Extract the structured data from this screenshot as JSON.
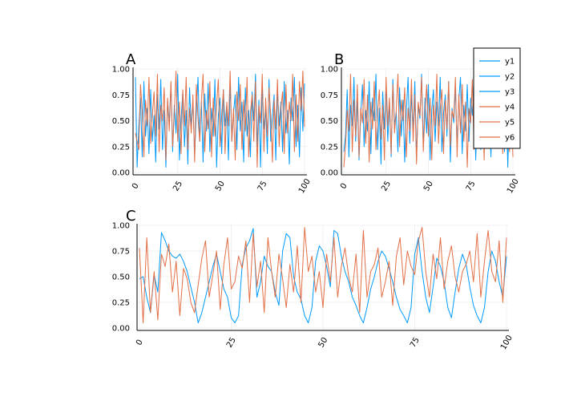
{
  "colors": {
    "blue": "#009AFA",
    "orange": "#E26F46",
    "grid": "#E6E6E6",
    "axis": "#000000"
  },
  "legend": {
    "placement": "top-right",
    "entries": [
      {
        "label": "y1",
        "color": "#009AFA"
      },
      {
        "label": "y2",
        "color": "#009AFA"
      },
      {
        "label": "y3",
        "color": "#009AFA"
      },
      {
        "label": "y4",
        "color": "#E26F46"
      },
      {
        "label": "y5",
        "color": "#E26F46"
      },
      {
        "label": "y6",
        "color": "#E26F46"
      }
    ]
  },
  "chart_data": [
    {
      "type": "line",
      "title": "A",
      "xlim": [
        0,
        100
      ],
      "ylim": [
        0,
        1
      ],
      "xticks": [
        "0",
        "25",
        "50",
        "75",
        "100"
      ],
      "yticks": [
        "0.00",
        "0.25",
        "0.50",
        "0.75",
        "1.00"
      ],
      "grid": true,
      "series": [
        {
          "name": "y1",
          "color": "#009AFA",
          "values": [
            0.92,
            0.05,
            0.45,
            0.72,
            0.15,
            0.88,
            0.35,
            0.62,
            0.18,
            0.8,
            0.3,
            0.55,
            0.1,
            0.75,
            0.42,
            0.9,
            0.22,
            0.6,
            0.05,
            0.7,
            0.48,
            0.85,
            0.2,
            0.65,
            0.38,
            0.95,
            0.12,
            0.52,
            0.78,
            0.25,
            0.6,
            0.08,
            0.82,
            0.44,
            0.7,
            0.15,
            0.58,
            0.92,
            0.3,
            0.68,
            0.1,
            0.76,
            0.4,
            0.86,
            0.2,
            0.62,
            0.35,
            0.9,
            0.05,
            0.55,
            0.72,
            0.18,
            0.8,
            0.45,
            0.65,
            0.12,
            0.88,
            0.3,
            0.58,
            0.75,
            0.22,
            0.92,
            0.4,
            0.68,
            0.1,
            0.82,
            0.35,
            0.6,
            0.15,
            0.78,
            0.5,
            0.95,
            0.25,
            0.7,
            0.05,
            0.85,
            0.42,
            0.62,
            0.18,
            0.9,
            0.3,
            0.55,
            0.75,
            0.12,
            0.8,
            0.45,
            0.68,
            0.2,
            0.88,
            0.38,
            0.6,
            0.08,
            0.72,
            0.5,
            0.92,
            0.25,
            0.65,
            0.15,
            0.82,
            0.4,
            0.86
          ]
        },
        {
          "name": "y4",
          "color": "#E26F46",
          "values": [
            0.38,
            0.3,
            0.22,
            0.85,
            0.6,
            0.15,
            0.7,
            0.45,
            0.92,
            0.28,
            0.55,
            0.78,
            0.35,
            0.95,
            0.2,
            0.65,
            0.5,
            0.82,
            0.12,
            0.72,
            0.4,
            0.88,
            0.25,
            0.58,
            0.98,
            0.3,
            0.68,
            0.18,
            0.8,
            0.45,
            0.92,
            0.22,
            0.62,
            0.38,
            0.75,
            0.1,
            0.85,
            0.52,
            0.3,
            0.7,
            0.95,
            0.2,
            0.6,
            0.42,
            0.88,
            0.15,
            0.72,
            0.35,
            0.65,
            0.9,
            0.25,
            0.55,
            0.8,
            0.18,
            0.68,
            0.45,
            0.98,
            0.3,
            0.62,
            0.12,
            0.78,
            0.5,
            0.85,
            0.22,
            0.7,
            0.4,
            0.92,
            0.15,
            0.58,
            0.75,
            0.3,
            0.88,
            0.05,
            0.65,
            0.48,
            0.95,
            0.2,
            0.72,
            0.35,
            0.82,
            0.55,
            0.1,
            0.7,
            0.42,
            0.9,
            0.25,
            0.62,
            0.78,
            0.18,
            0.85,
            0.38,
            0.68,
            0.5,
            0.95,
            0.2,
            0.75,
            0.3,
            0.88,
            0.6,
            0.98,
            0.44
          ]
        }
      ]
    },
    {
      "type": "line",
      "title": "B",
      "xlim": [
        0,
        100
      ],
      "ylim": [
        0,
        1
      ],
      "xticks": [
        "0",
        "25",
        "50",
        "75",
        "100"
      ],
      "yticks": [
        "0.00",
        "0.25",
        "0.50",
        "0.75",
        "1.00"
      ],
      "grid": true,
      "series": [
        {
          "name": "y2",
          "color": "#009AFA",
          "values": [
            0.2,
            0.35,
            0.8,
            0.15,
            0.65,
            0.45,
            0.92,
            0.3,
            0.7,
            0.12,
            0.55,
            0.85,
            0.25,
            0.6,
            0.4,
            0.88,
            0.18,
            0.72,
            0.5,
            0.95,
            0.22,
            0.62,
            0.08,
            0.78,
            0.42,
            0.85,
            0.3,
            0.68,
            0.15,
            0.9,
            0.45,
            0.58,
            0.2,
            0.82,
            0.35,
            0.7,
            0.1,
            0.6,
            0.92,
            0.28,
            0.75,
            0.4,
            0.88,
            0.15,
            0.65,
            0.52,
            0.95,
            0.25,
            0.72,
            0.38,
            0.85,
            0.12,
            0.6,
            0.8,
            0.3,
            0.68,
            0.45,
            0.92,
            0.2,
            0.58,
            0.75,
            0.35,
            0.88,
            0.1,
            0.62,
            0.48,
            0.82,
            0.25,
            0.7,
            0.92,
            0.18,
            0.65,
            0.4,
            0.85,
            0.3,
            0.72,
            0.55,
            0.95,
            0.12,
            0.6,
            0.78,
            0.22,
            0.68,
            0.45,
            0.9,
            0.35,
            0.62,
            0.15,
            0.8,
            0.5,
            0.92,
            0.28,
            0.7,
            0.42,
            0.86,
            0.2,
            0.65,
            0.05,
            0.75,
            0.55,
            0.82
          ]
        },
        {
          "name": "y5",
          "color": "#E26F46",
          "values": [
            0.05,
            0.25,
            0.6,
            0.4,
            0.95,
            0.2,
            0.7,
            0.35,
            0.85,
            0.15,
            0.62,
            0.48,
            0.9,
            0.28,
            0.75,
            0.1,
            0.68,
            0.42,
            0.88,
            0.22,
            0.58,
            0.8,
            0.32,
            0.65,
            0.12,
            0.92,
            0.45,
            0.72,
            0.18,
            0.85,
            0.38,
            0.6,
            0.95,
            0.25,
            0.7,
            0.5,
            0.82,
            0.15,
            0.62,
            0.4,
            0.9,
            0.3,
            0.75,
            0.08,
            0.68,
            0.55,
            0.92,
            0.2,
            0.58,
            0.85,
            0.35,
            0.72,
            0.12,
            0.65,
            0.45,
            0.95,
            0.28,
            0.62,
            0.8,
            0.18,
            0.7,
            0.42,
            0.88,
            0.25,
            0.6,
            0.52,
            0.92,
            0.15,
            0.75,
            0.38,
            0.85,
            0.3,
            0.68,
            0.05,
            0.62,
            0.48,
            0.9,
            0.22,
            0.72,
            0.58,
            0.82,
            0.35,
            0.65,
            0.12,
            0.88,
            0.42,
            0.7,
            0.25,
            0.95,
            0.55,
            0.78,
            0.3,
            0.62,
            0.85,
            0.18,
            0.72,
            0.45,
            0.9,
            0.2,
            0.68,
            0.15
          ]
        }
      ]
    },
    {
      "type": "line",
      "title": "C",
      "xlim": [
        0,
        100
      ],
      "ylim": [
        0,
        1
      ],
      "xticks": [
        "0",
        "25",
        "50",
        "75",
        "100"
      ],
      "yticks": [
        "0.00",
        "0.25",
        "0.50",
        "0.75",
        "1.00"
      ],
      "grid": true,
      "series": [
        {
          "name": "y3",
          "color": "#009AFA",
          "values": [
            0.48,
            0.5,
            0.3,
            0.15,
            0.52,
            0.35,
            0.93,
            0.85,
            0.75,
            0.7,
            0.68,
            0.72,
            0.65,
            0.55,
            0.4,
            0.25,
            0.05,
            0.15,
            0.3,
            0.45,
            0.6,
            0.72,
            0.55,
            0.38,
            0.3,
            0.1,
            0.05,
            0.12,
            0.62,
            0.78,
            0.85,
            0.97,
            0.3,
            0.45,
            0.7,
            0.6,
            0.55,
            0.35,
            0.22,
            0.75,
            0.92,
            0.88,
            0.5,
            0.35,
            0.28,
            0.12,
            0.05,
            0.2,
            0.65,
            0.8,
            0.75,
            0.6,
            0.4,
            0.95,
            0.92,
            0.7,
            0.55,
            0.45,
            0.3,
            0.22,
            0.12,
            0.05,
            0.2,
            0.38,
            0.5,
            0.65,
            0.75,
            0.7,
            0.58,
            0.45,
            0.3,
            0.18,
            0.12,
            0.05,
            0.2,
            0.72,
            0.88,
            0.55,
            0.3,
            0.15,
            0.4,
            0.68,
            0.6,
            0.45,
            0.2,
            0.1,
            0.35,
            0.58,
            0.72,
            0.62,
            0.4,
            0.22,
            0.12,
            0.05,
            0.2,
            0.55,
            0.75,
            0.65,
            0.45,
            0.3,
            0.7
          ]
        },
        {
          "name": "y6",
          "color": "#E26F46",
          "values": [
            0.78,
            0.05,
            0.88,
            0.15,
            0.55,
            0.08,
            0.72,
            0.6,
            0.82,
            0.35,
            0.65,
            0.12,
            0.58,
            0.48,
            0.25,
            0.15,
            0.42,
            0.68,
            0.85,
            0.3,
            0.52,
            0.75,
            0.18,
            0.62,
            0.88,
            0.38,
            0.45,
            0.7,
            0.58,
            0.85,
            0.25,
            0.92,
            0.4,
            0.65,
            0.15,
            0.88,
            0.55,
            0.3,
            0.72,
            0.48,
            0.2,
            0.62,
            0.35,
            0.8,
            0.25,
            0.98,
            0.55,
            0.7,
            0.35,
            0.55,
            0.2,
            0.72,
            0.45,
            0.88,
            0.3,
            0.6,
            0.78,
            0.5,
            0.35,
            0.72,
            0.15,
            0.95,
            0.3,
            0.55,
            0.62,
            0.78,
            0.3,
            0.45,
            0.65,
            0.22,
            0.7,
            0.88,
            0.42,
            0.75,
            0.6,
            0.52,
            0.85,
            0.98,
            0.55,
            0.3,
            0.72,
            0.48,
            0.88,
            0.38,
            0.65,
            0.8,
            0.5,
            0.35,
            0.55,
            0.62,
            0.75,
            0.45,
            0.92,
            0.3,
            0.65,
            0.95,
            0.55,
            0.45,
            0.85,
            0.25,
            0.88
          ]
        }
      ]
    }
  ]
}
